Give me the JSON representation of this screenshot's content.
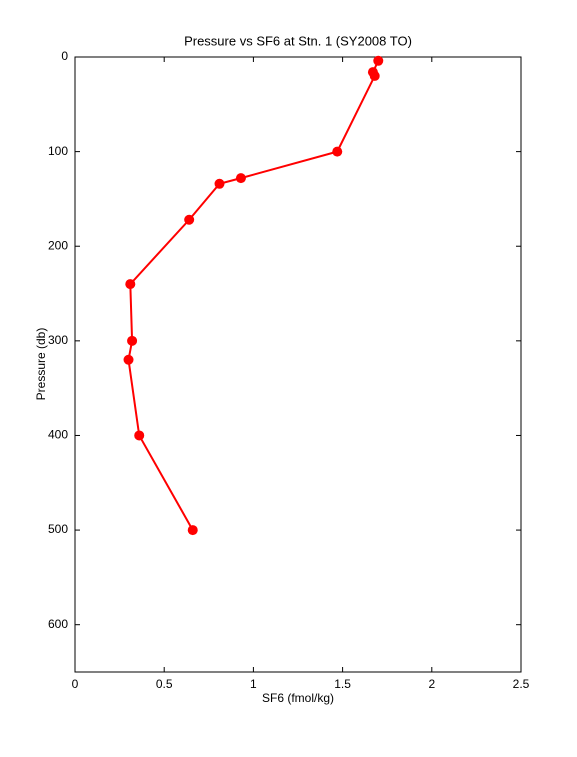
{
  "chart_data": {
    "type": "line",
    "title": "Pressure vs SF6 at Stn. 1 (SY2008 TO)",
    "x_label": "SF6 (fmol/kg)",
    "y_label": "Pressure (db)",
    "x": [
      1.7,
      1.67,
      1.68,
      1.47,
      0.93,
      0.81,
      0.64,
      0.31,
      0.32,
      0.3,
      0.36,
      0.66
    ],
    "values": [
      4,
      16,
      20,
      100,
      128,
      134,
      172,
      240,
      300,
      320,
      400,
      500
    ],
    "color": "#ff0000",
    "xlim": [
      0,
      2.5
    ],
    "xticks": [
      0,
      0.5,
      1,
      1.5,
      2,
      2.5
    ],
    "ylim": [
      0,
      650
    ],
    "yticks": [
      0,
      100,
      200,
      300,
      400,
      500,
      600
    ],
    "y_reversed": true
  }
}
